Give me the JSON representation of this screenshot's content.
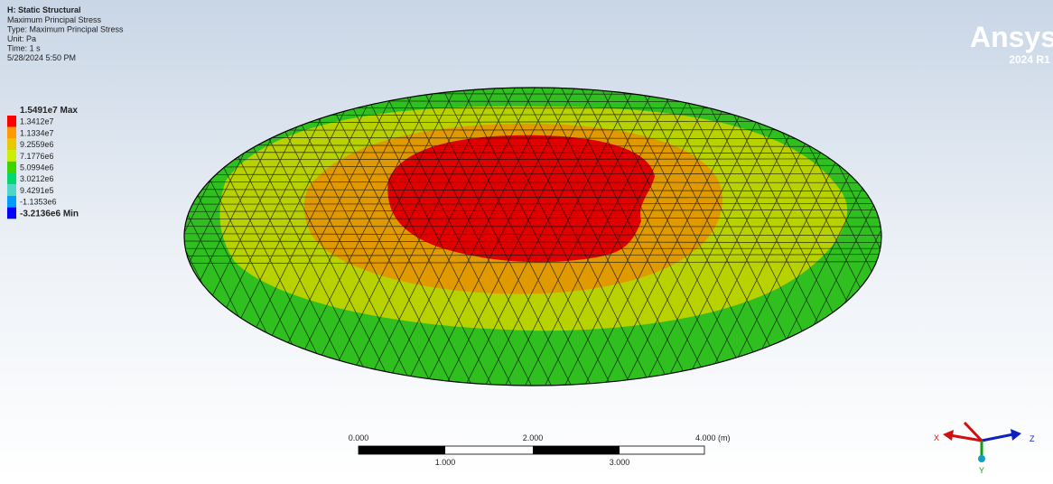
{
  "header": {
    "title": "H: Static Structural",
    "lines": [
      "Maximum Principal Stress",
      "Type: Maximum Principal Stress",
      "Unit: Pa",
      "Time: 1 s",
      "5/28/2024 5:50 PM"
    ]
  },
  "legend": {
    "labels": [
      "1.5491e7 Max",
      "1.3412e7",
      "1.1334e7",
      "9.2559e6",
      "7.1776e6",
      "5.0994e6",
      "3.0212e6",
      "9.4291e5",
      "-1.1353e6",
      "-3.2136e6 Min"
    ],
    "colors": [
      "#ff0000",
      "#ff9a00",
      "#e8c800",
      "#ccee00",
      "#3bd400",
      "#00d870",
      "#4fd6c8",
      "#009cff",
      "#0000ff"
    ]
  },
  "logo": {
    "name": "Ansys",
    "version": "2024 R1"
  },
  "scale_bar": {
    "top_labels": [
      "0.000",
      "2.000",
      "4.000 (m)"
    ],
    "bottom_labels": [
      "1.000",
      "3.000"
    ]
  },
  "triad": {
    "x": "X",
    "y": "Y",
    "z": "Z"
  }
}
